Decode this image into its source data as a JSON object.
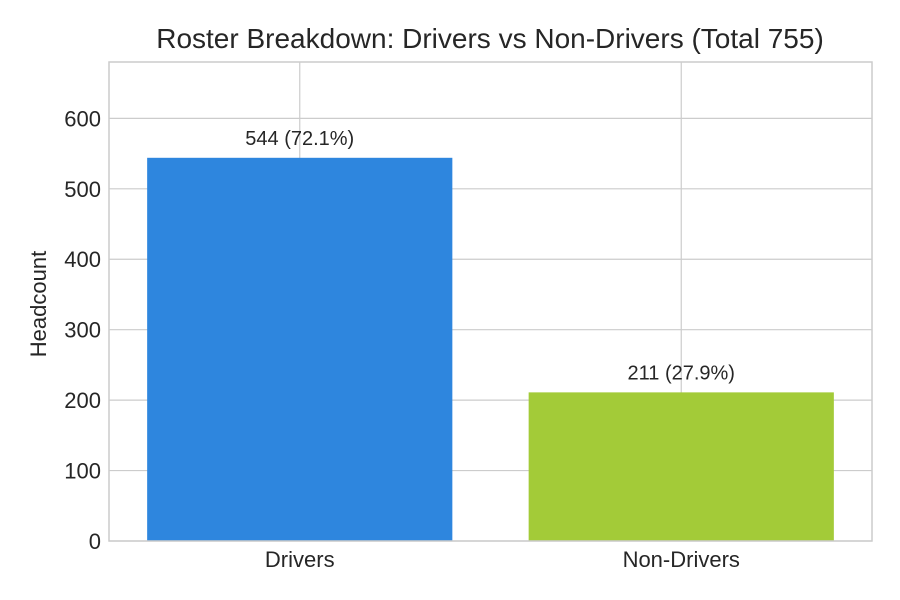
{
  "chart_data": {
    "type": "bar",
    "title": "Roster Breakdown: Drivers vs Non-Drivers (Total 755)",
    "xlabel": "",
    "ylabel": "Headcount",
    "categories": [
      "Drivers",
      "Non-Drivers"
    ],
    "values": [
      544,
      211
    ],
    "data_labels": [
      "544 (72.1%)",
      "211 (27.9%)"
    ],
    "colors": [
      "#2e86de",
      "#a3cb38"
    ],
    "ylim": [
      0,
      680
    ],
    "yticks": [
      0,
      100,
      200,
      300,
      400,
      500,
      600
    ],
    "ytick_labels": [
      "0",
      "100",
      "200",
      "300",
      "400",
      "500",
      "600"
    ],
    "grid": true,
    "legend": "none"
  }
}
